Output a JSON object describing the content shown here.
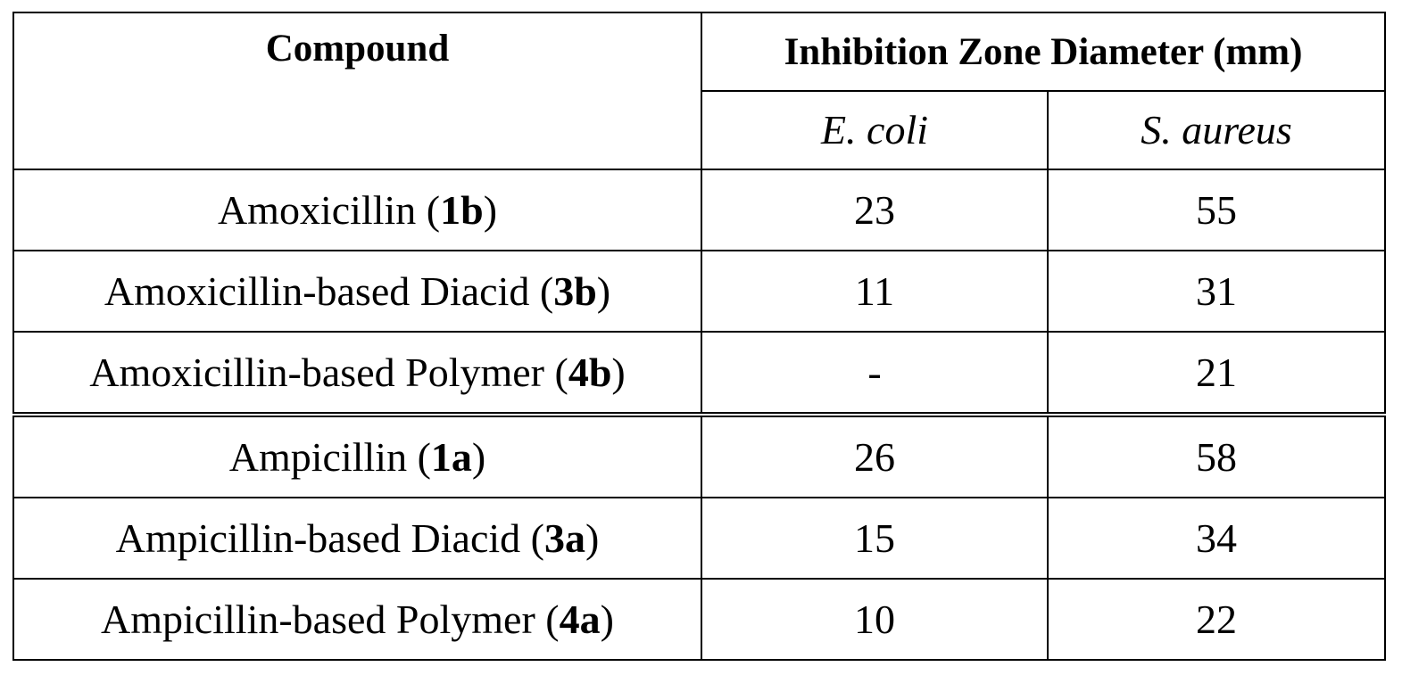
{
  "table": {
    "header": {
      "compound": "Compound",
      "inhibition": "Inhibition Zone Diameter (mm)",
      "species": [
        "E. coli",
        "S. aureus"
      ]
    },
    "rows": [
      {
        "name": "Amoxicillin",
        "id": "1b",
        "ecoli": "23",
        "saureus": "55"
      },
      {
        "name": "Amoxicillin-based Diacid",
        "id": "3b",
        "ecoli": "11",
        "saureus": "31"
      },
      {
        "name": "Amoxicillin-based Polymer",
        "id": "4b",
        "ecoli": "-",
        "saureus": "21"
      },
      {
        "name": "Ampicillin",
        "id": "1a",
        "ecoli": "26",
        "saureus": "58"
      },
      {
        "name": "Ampicillin-based Diacid",
        "id": "3a",
        "ecoli": "15",
        "saureus": "34"
      },
      {
        "name": "Ampicillin-based Polymer",
        "id": "4a",
        "ecoli": "10",
        "saureus": "22"
      }
    ]
  }
}
